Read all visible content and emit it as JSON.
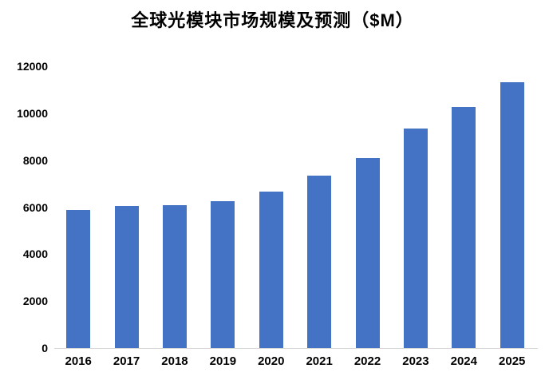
{
  "chart_data": {
    "type": "bar",
    "title": "全球光模块市场规模及预测（$M）",
    "categories": [
      "2016",
      "2017",
      "2018",
      "2019",
      "2020",
      "2021",
      "2022",
      "2023",
      "2024",
      "2025"
    ],
    "values": [
      5870,
      6050,
      6090,
      6240,
      6660,
      7340,
      8090,
      9360,
      10280,
      11320
    ],
    "xlabel": "",
    "ylabel": "",
    "ylim": [
      0,
      12000
    ],
    "ytick_step": 2000,
    "yticks": [
      0,
      2000,
      4000,
      6000,
      8000,
      10000,
      12000
    ],
    "grid": false,
    "legend": null,
    "colors": {
      "bar": "#4472C4",
      "axis_line": "#D9D9D9",
      "text": "#000000",
      "background": "#FFFFFF"
    }
  }
}
